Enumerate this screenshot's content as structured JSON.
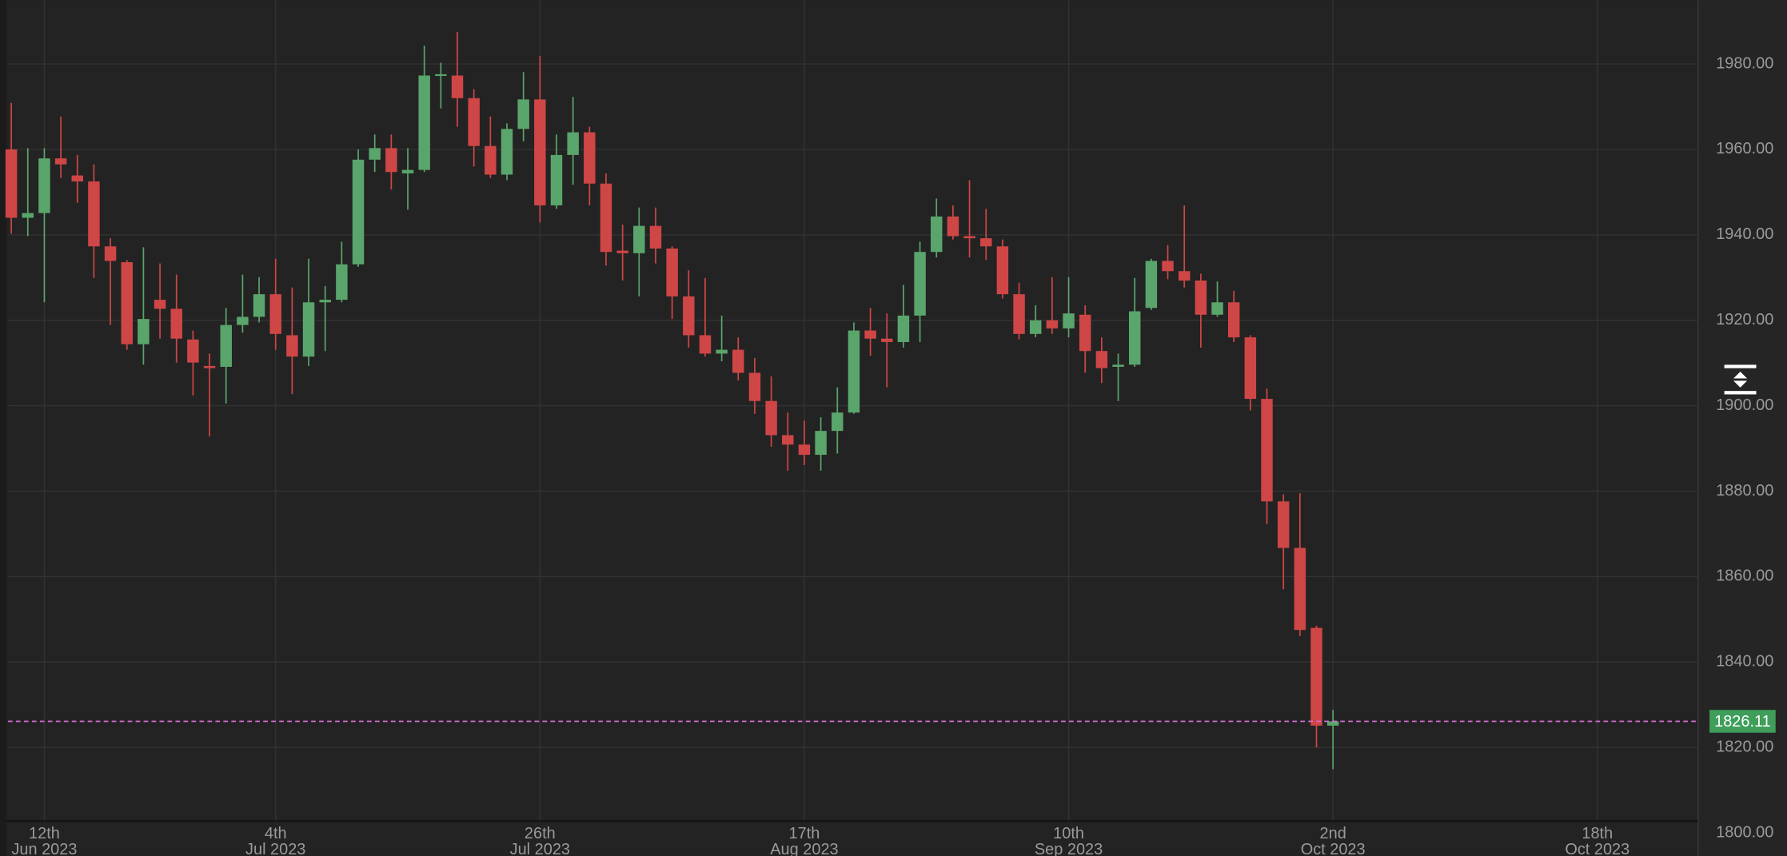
{
  "chart_data": {
    "type": "candlestick",
    "up_color": "#5aa56b",
    "down_color": "#cf4646",
    "price_line_color": "#d46fd6",
    "price_label_color": "#3f9e5a",
    "grid": true,
    "ylim": [
      1802.9,
      1994.93
    ],
    "yticks": [
      {
        "value": 1800,
        "label": "1800.00"
      },
      {
        "value": 1820,
        "label": "1820.00"
      },
      {
        "value": 1840,
        "label": "1840.00"
      },
      {
        "value": 1860,
        "label": "1860.00"
      },
      {
        "value": 1880,
        "label": "1880.00"
      },
      {
        "value": 1900,
        "label": "1900.00"
      },
      {
        "value": 1920,
        "label": "1920.00"
      },
      {
        "value": 1940,
        "label": "1940.00"
      },
      {
        "value": 1960,
        "label": "1960.00"
      },
      {
        "value": 1980,
        "label": "1980.00"
      }
    ],
    "xlim": [
      -0.2,
      102.1
    ],
    "xticks": [
      {
        "value": 2,
        "label": "12th",
        "sublabel": "Jun 2023"
      },
      {
        "value": 16,
        "label": "4th",
        "sublabel": "Jul 2023"
      },
      {
        "value": 32,
        "label": "26th",
        "sublabel": "Jul 2023"
      },
      {
        "value": 48,
        "label": "17th",
        "sublabel": "Aug 2023"
      },
      {
        "value": 64,
        "label": "10th",
        "sublabel": "Sep 2023"
      },
      {
        "value": 80,
        "label": "2nd",
        "sublabel": "Oct 2023"
      },
      {
        "value": 96,
        "label": "18th",
        "sublabel": "Oct 2023"
      }
    ],
    "open": [
      1960.0,
      1944.0,
      1945.1,
      1957.9,
      1953.9,
      1952.5,
      1937.3,
      1933.6,
      1914.4,
      1924.8,
      1922.7,
      1915.5,
      1909.3,
      1909.1,
      1918.9,
      1920.8,
      1926.1,
      1916.5,
      1911.5,
      1924.2,
      1924.8,
      1933.1,
      1957.6,
      1960.3,
      1954.4,
      1955.2,
      1977.3,
      1977.3,
      1972.0,
      1960.8,
      1954.1,
      1964.8,
      1971.7,
      1946.9,
      1958.7,
      1964.0,
      1952.0,
      1936.3,
      1935.7,
      1942.1,
      1936.8,
      1925.6,
      1916.5,
      1912.2,
      1913.1,
      1907.7,
      1901.1,
      1893.1,
      1890.9,
      1888.5,
      1894.1,
      1898.4,
      1917.6,
      1915.7,
      1914.9,
      1921.1,
      1936.0,
      1944.3,
      1939.7,
      1939.2,
      1937.3,
      1926.1,
      1916.8,
      1920.0,
      1918.1,
      1921.3,
      1912.8,
      1909.1,
      1909.6,
      1922.9,
      1933.9,
      1931.5,
      1929.3,
      1921.3,
      1924.2,
      1916.0,
      1901.6,
      1877.6,
      1866.7,
      1848.0,
      1825.1
    ],
    "high": [
      1970.9,
      1960.3,
      1960.3,
      1967.7,
      1958.7,
      1956.5,
      1939.2,
      1934.1,
      1937.1,
      1933.3,
      1930.7,
      1917.6,
      1912.2,
      1922.9,
      1930.7,
      1930.1,
      1934.4,
      1927.7,
      1934.4,
      1928.0,
      1938.4,
      1960.0,
      1963.5,
      1963.5,
      1960.3,
      1984.3,
      1980.3,
      1987.5,
      1974.1,
      1967.7,
      1966.1,
      1978.1,
      1981.9,
      1963.5,
      1972.3,
      1965.3,
      1954.4,
      1942.4,
      1946.4,
      1946.4,
      1937.3,
      1931.7,
      1929.9,
      1921.1,
      1916.0,
      1911.2,
      1906.9,
      1898.4,
      1896.5,
      1897.3,
      1904.3,
      1919.5,
      1922.9,
      1921.6,
      1928.3,
      1938.4,
      1948.5,
      1946.9,
      1952.8,
      1946.1,
      1938.9,
      1928.8,
      1923.5,
      1930.1,
      1930.1,
      1923.5,
      1916.0,
      1912.2,
      1929.9,
      1934.4,
      1937.6,
      1946.9,
      1930.9,
      1929.1,
      1926.9,
      1916.5,
      1904.0,
      1879.2,
      1879.5,
      1848.5,
      1828.8
    ],
    "low": [
      1940.3,
      1939.7,
      1924.2,
      1953.3,
      1947.5,
      1929.9,
      1918.9,
      1913.1,
      1909.6,
      1915.7,
      1910.1,
      1902.4,
      1892.8,
      1900.5,
      1917.1,
      1919.5,
      1913.1,
      1902.7,
      1909.3,
      1912.8,
      1924.2,
      1932.5,
      1954.7,
      1950.6,
      1945.9,
      1954.7,
      1969.6,
      1965.3,
      1956.0,
      1953.3,
      1952.8,
      1961.9,
      1942.9,
      1946.1,
      1951.7,
      1946.9,
      1932.8,
      1929.3,
      1925.6,
      1933.3,
      1920.3,
      1913.6,
      1911.5,
      1910.4,
      1905.9,
      1898.1,
      1890.4,
      1884.8,
      1886.1,
      1884.8,
      1888.8,
      1898.1,
      1911.7,
      1904.3,
      1913.6,
      1914.9,
      1934.7,
      1938.9,
      1934.7,
      1934.1,
      1925.1,
      1915.5,
      1916.0,
      1916.8,
      1916.0,
      1907.7,
      1905.3,
      1901.1,
      1909.1,
      1922.4,
      1929.6,
      1927.7,
      1913.6,
      1920.8,
      1914.9,
      1898.9,
      1872.3,
      1857.0,
      1846.1,
      1820.0,
      1814.9
    ],
    "close": [
      1944.0,
      1945.1,
      1957.9,
      1956.5,
      1952.5,
      1937.3,
      1933.9,
      1914.4,
      1920.3,
      1922.7,
      1915.7,
      1910.1,
      1908.8,
      1918.9,
      1920.8,
      1926.1,
      1916.8,
      1911.5,
      1924.2,
      1924.8,
      1933.1,
      1957.6,
      1960.3,
      1954.7,
      1955.2,
      1977.3,
      1977.6,
      1972.0,
      1960.8,
      1954.1,
      1964.8,
      1971.7,
      1946.9,
      1958.7,
      1964.0,
      1952.0,
      1936.0,
      1935.7,
      1942.1,
      1936.8,
      1925.6,
      1916.5,
      1912.2,
      1913.1,
      1907.7,
      1901.1,
      1893.1,
      1890.9,
      1888.5,
      1894.1,
      1898.4,
      1917.6,
      1915.7,
      1914.9,
      1921.1,
      1936.0,
      1944.3,
      1939.7,
      1939.2,
      1937.3,
      1926.1,
      1916.8,
      1920.0,
      1918.1,
      1921.6,
      1912.8,
      1908.8,
      1909.6,
      1922.1,
      1933.9,
      1931.5,
      1929.3,
      1921.3,
      1924.2,
      1916.0,
      1901.6,
      1877.6,
      1866.7,
      1847.5,
      1825.1,
      1826.11
    ]
  }
}
